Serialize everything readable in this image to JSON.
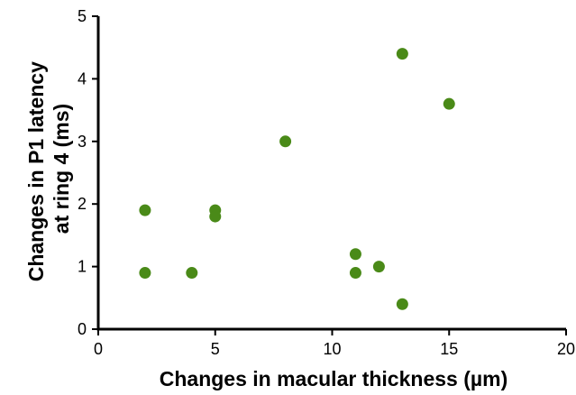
{
  "chart_data": {
    "type": "scatter",
    "title": "",
    "xlabel": "Changes in macular thickness (µm)",
    "ylabel_lines": [
      "Changes in P1 latency",
      "at ring 4 (ms)"
    ],
    "xlim": [
      0,
      20
    ],
    "ylim": [
      0,
      5
    ],
    "xticks": [
      0,
      5,
      10,
      15,
      20
    ],
    "yticks": [
      0,
      1,
      2,
      3,
      4,
      5
    ],
    "grid": false,
    "legend": "none",
    "marker_color": "#4a8a18",
    "series": [
      {
        "points": [
          {
            "x": 2,
            "y": 1.9
          },
          {
            "x": 2,
            "y": 0.9
          },
          {
            "x": 4,
            "y": 0.9
          },
          {
            "x": 5,
            "y": 1.9
          },
          {
            "x": 5,
            "y": 1.8
          },
          {
            "x": 8,
            "y": 3.0
          },
          {
            "x": 11,
            "y": 1.2
          },
          {
            "x": 11,
            "y": 0.9
          },
          {
            "x": 12,
            "y": 1.0
          },
          {
            "x": 13,
            "y": 4.4
          },
          {
            "x": 13,
            "y": 0.4
          },
          {
            "x": 15,
            "y": 3.6
          }
        ]
      }
    ]
  }
}
